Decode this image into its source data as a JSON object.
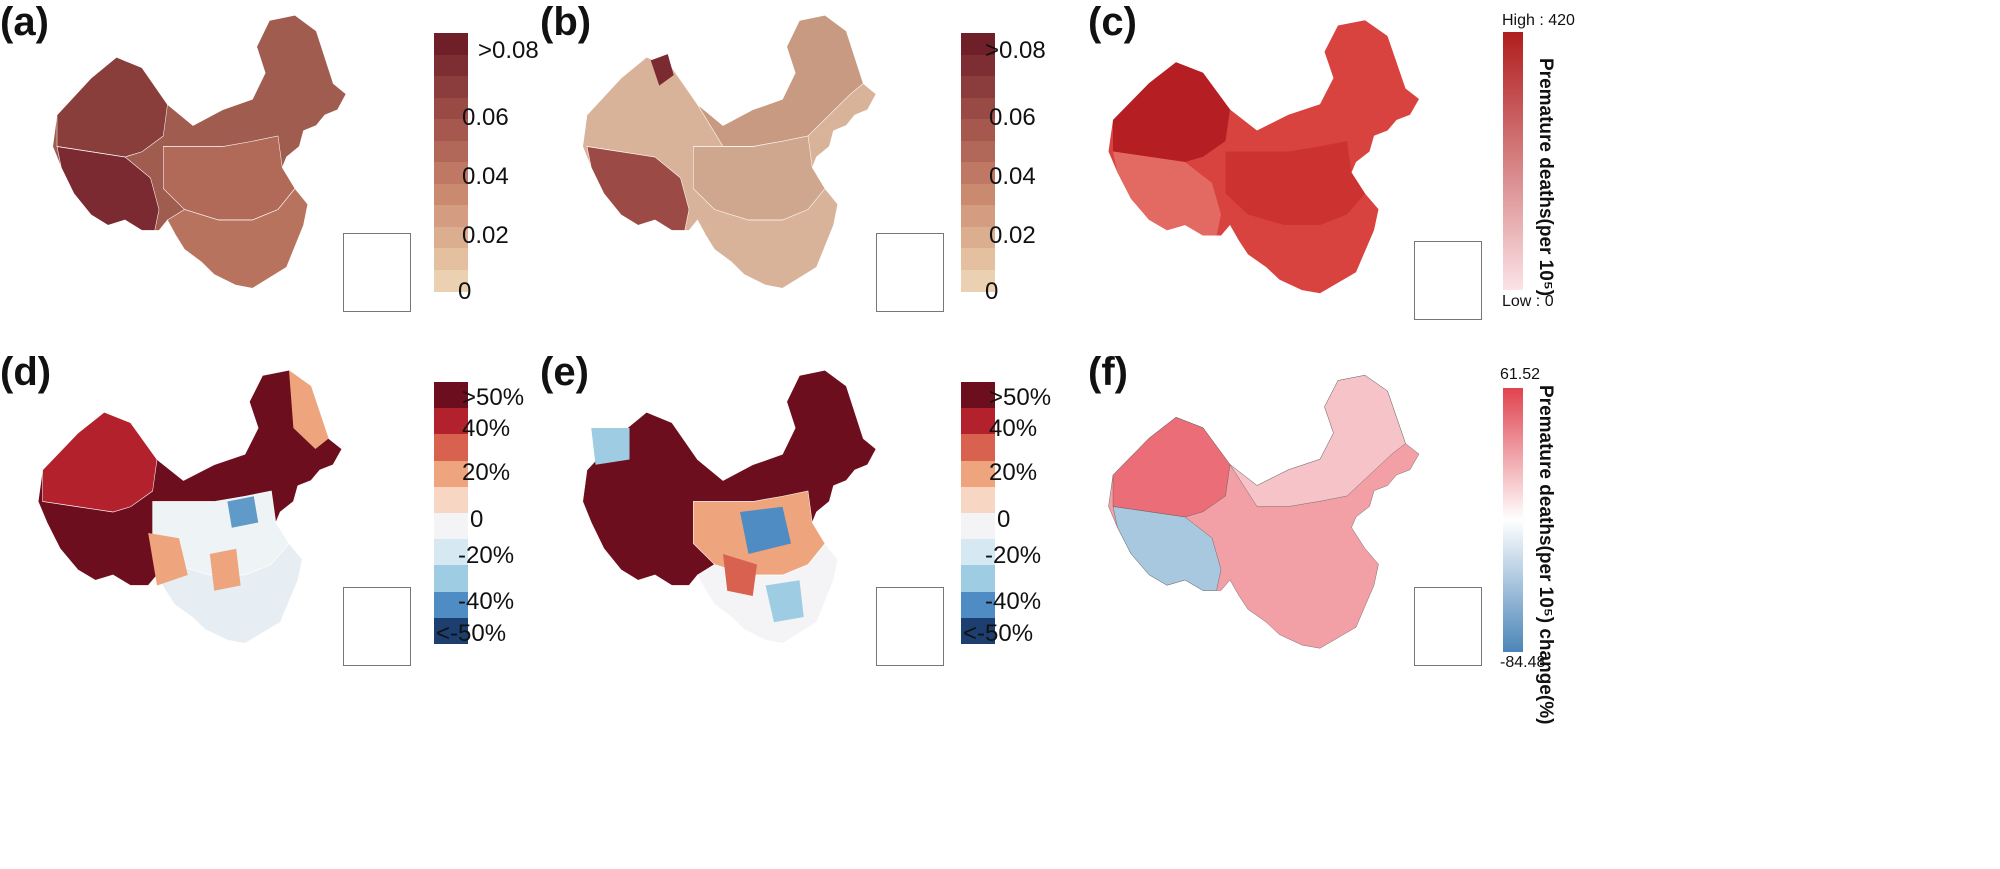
{
  "panels": [
    {
      "label": "(a)"
    },
    {
      "label": "(b)"
    },
    {
      "label": "(c)"
    },
    {
      "label": "(d)"
    },
    {
      "label": "(e)"
    },
    {
      "label": "(f)"
    }
  ],
  "legend_ab": {
    "labels": [
      ">0.08",
      "0.06",
      "0.04",
      "0.02",
      "0"
    ],
    "colors": [
      "#6e1f28",
      "#7d2e33",
      "#8b3d3d",
      "#994a45",
      "#a6584f",
      "#b26858",
      "#be7863",
      "#c98a70",
      "#d49c80",
      "#dcae90",
      "#e4c0a0",
      "#ebd0b2"
    ]
  },
  "legend_c": {
    "high": "High : 420",
    "low": "Low : 0",
    "title": "Premature deaths(per 10⁵)",
    "colors": [
      "#b01d1d",
      "#fbe3e6"
    ]
  },
  "legend_de": {
    "labels": [
      ">50%",
      "40%",
      "20%",
      "0",
      "-20%",
      "-40%",
      "<-50%"
    ],
    "colors": [
      "#6d0e1f",
      "#b3212c",
      "#d8614f",
      "#eea57e",
      "#f8d6c4",
      "#f4f4f6",
      "#d6e9f2",
      "#9ecde3",
      "#4f8cc4",
      "#1c3f70"
    ]
  },
  "legend_f": {
    "high": "61.52",
    "low": "-84.48",
    "title": "Premature deaths(per 10⁵) change(%)",
    "colors": [
      "#e0434f",
      "#ffffff",
      "#4a85b8"
    ]
  },
  "map_fills": {
    "a": "#a05c4f",
    "a_west": "#8a3e3c",
    "a_tibet": "#7a2a30",
    "b": "#d8b39a",
    "b_tibet": "#9c4a46",
    "b_north": "#7a2a30",
    "c": "#d9433f",
    "c_dark": "#b51e22",
    "c_light": "#e36a63",
    "d": "#6d0e1f",
    "d_red": "#b3212c",
    "d_east": "#eea57e",
    "d_pale": "#eef3f6",
    "d_blue": "#5f9ac9",
    "e": "#6d0e1f",
    "e_mid": "#eea57e",
    "e_blue": "#4f8cc4",
    "e_pale": "#f4f4f6",
    "f": "#f2a0a6",
    "f_red": "#ea6d77",
    "f_blue": "#a8c8df"
  }
}
